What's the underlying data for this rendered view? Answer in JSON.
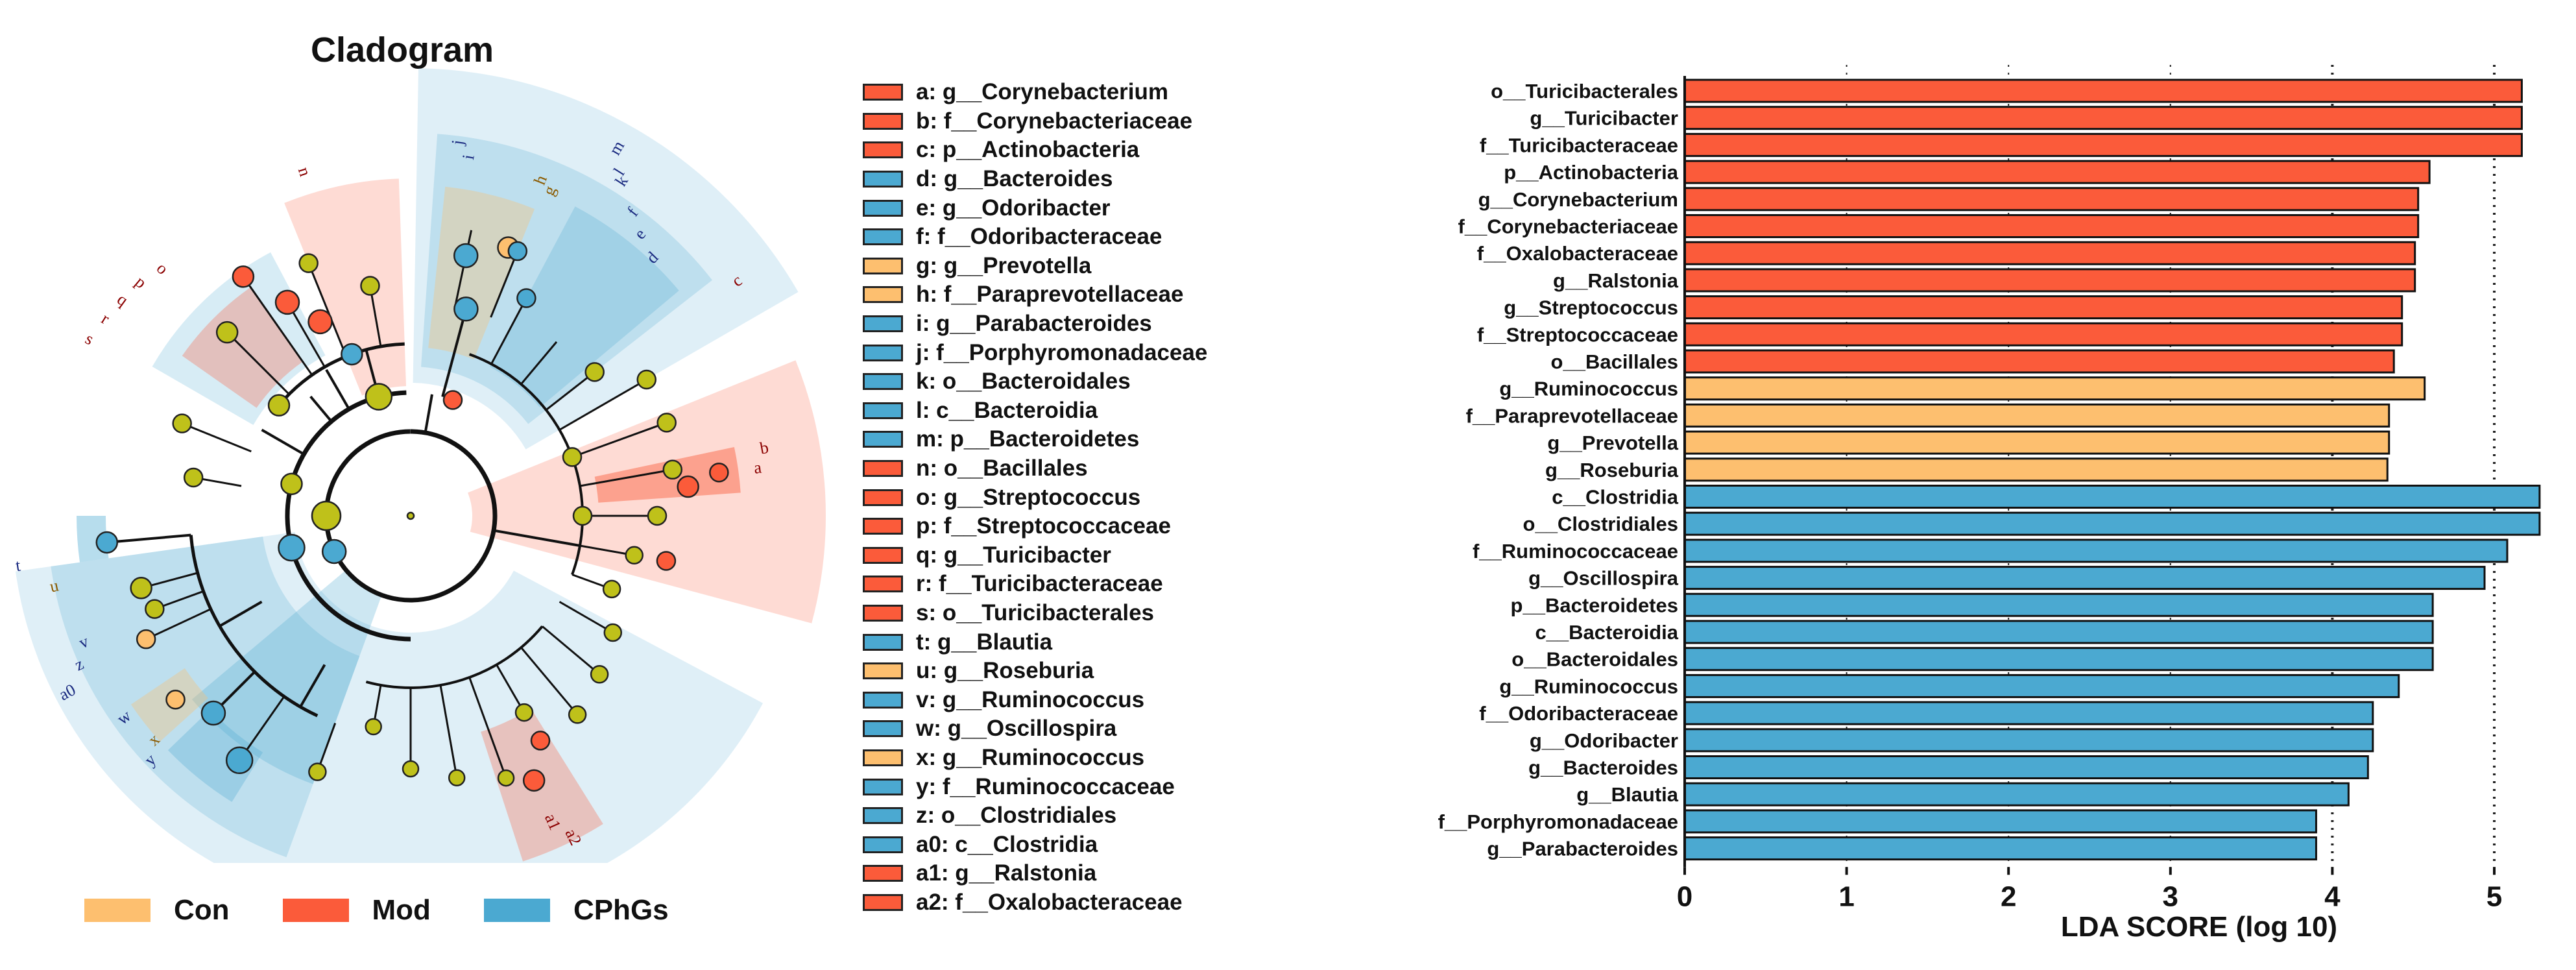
{
  "colors": {
    "Con": "#FDBF6F",
    "Mod": "#FB5B3A",
    "CPhGs": "#4BA9D1",
    "olive": "#BFC11A"
  },
  "cladogram": {
    "title": "Cladogram",
    "labels": [
      "n",
      "j",
      "i",
      "h",
      "g",
      "m",
      "l",
      "k",
      "f",
      "e",
      "d",
      "c",
      "b",
      "a",
      "s",
      "r",
      "q",
      "p",
      "o",
      "t",
      "u",
      "v",
      "w",
      "x",
      "y",
      "z",
      "a0",
      "a1",
      "a2"
    ]
  },
  "legend": {
    "items": [
      {
        "key": "a",
        "text": "a: g__Corynebacterium",
        "group": "Mod"
      },
      {
        "key": "b",
        "text": "b: f__Corynebacteriaceae",
        "group": "Mod"
      },
      {
        "key": "c",
        "text": "c: p__Actinobacteria",
        "group": "Mod"
      },
      {
        "key": "d",
        "text": "d: g__Bacteroides",
        "group": "CPhGs"
      },
      {
        "key": "e",
        "text": "e: g__Odoribacter",
        "group": "CPhGs"
      },
      {
        "key": "f",
        "text": "f: f__Odoribacteraceae",
        "group": "CPhGs"
      },
      {
        "key": "g",
        "text": "g: g__Prevotella",
        "group": "Con"
      },
      {
        "key": "h",
        "text": "h: f__Paraprevotellaceae",
        "group": "Con"
      },
      {
        "key": "i",
        "text": "i: g__Parabacteroides",
        "group": "CPhGs"
      },
      {
        "key": "j",
        "text": "j: f__Porphyromonadaceae",
        "group": "CPhGs"
      },
      {
        "key": "k",
        "text": "k: o__Bacteroidales",
        "group": "CPhGs"
      },
      {
        "key": "l",
        "text": "l: c__Bacteroidia",
        "group": "CPhGs"
      },
      {
        "key": "m",
        "text": "m: p__Bacteroidetes",
        "group": "CPhGs"
      },
      {
        "key": "n",
        "text": "n: o__Bacillales",
        "group": "Mod"
      },
      {
        "key": "o",
        "text": "o: g__Streptococcus",
        "group": "Mod"
      },
      {
        "key": "p",
        "text": "p: f__Streptococcaceae",
        "group": "Mod"
      },
      {
        "key": "q",
        "text": "q: g__Turicibacter",
        "group": "Mod"
      },
      {
        "key": "r",
        "text": "r: f__Turicibacteraceae",
        "group": "Mod"
      },
      {
        "key": "s",
        "text": "s: o__Turicibacterales",
        "group": "Mod"
      },
      {
        "key": "t",
        "text": "t: g__Blautia",
        "group": "CPhGs"
      },
      {
        "key": "u",
        "text": "u: g__Roseburia",
        "group": "Con"
      },
      {
        "key": "v",
        "text": "v: g__Ruminococcus",
        "group": "CPhGs"
      },
      {
        "key": "w",
        "text": "w: g__Oscillospira",
        "group": "CPhGs"
      },
      {
        "key": "x",
        "text": "x: g__Ruminococcus",
        "group": "Con"
      },
      {
        "key": "y",
        "text": "y: f__Ruminococcaceae",
        "group": "CPhGs"
      },
      {
        "key": "z",
        "text": "z: o__Clostridiales",
        "group": "CPhGs"
      },
      {
        "key": "a0",
        "text": "a0: c__Clostridia",
        "group": "CPhGs"
      },
      {
        "key": "a1",
        "text": "a1: g__Ralstonia",
        "group": "Mod"
      },
      {
        "key": "a2",
        "text": "a2: f__Oxalobacteraceae",
        "group": "Mod"
      }
    ]
  },
  "bottom_legend": [
    {
      "label": "Con",
      "group": "Con"
    },
    {
      "label": "Mod",
      "group": "Mod"
    },
    {
      "label": "CPhGs",
      "group": "CPhGs"
    }
  ],
  "chart_data": {
    "type": "bar",
    "orientation": "horizontal",
    "xlabel": "LDA SCORE (log 10)",
    "xlim": [
      0,
      5.3
    ],
    "xticks": [
      0,
      1,
      2,
      3,
      4,
      5
    ],
    "grid": "dotted vertical",
    "bars": [
      {
        "label": "o__Turicibacterales",
        "value": 5.17,
        "group": "Mod"
      },
      {
        "label": "g__Turicibacter",
        "value": 5.17,
        "group": "Mod"
      },
      {
        "label": "f__Turicibacteraceae",
        "value": 5.17,
        "group": "Mod"
      },
      {
        "label": "p__Actinobacteria",
        "value": 4.6,
        "group": "Mod"
      },
      {
        "label": "g__Corynebacterium",
        "value": 4.53,
        "group": "Mod"
      },
      {
        "label": "f__Corynebacteriaceae",
        "value": 4.53,
        "group": "Mod"
      },
      {
        "label": "f__Oxalobacteraceae",
        "value": 4.51,
        "group": "Mod"
      },
      {
        "label": "g__Ralstonia",
        "value": 4.51,
        "group": "Mod"
      },
      {
        "label": "g__Streptococcus",
        "value": 4.43,
        "group": "Mod"
      },
      {
        "label": "f__Streptococcaceae",
        "value": 4.43,
        "group": "Mod"
      },
      {
        "label": "o__Bacillales",
        "value": 4.38,
        "group": "Mod"
      },
      {
        "label": "g__Ruminococcus",
        "value": 4.57,
        "group": "Con"
      },
      {
        "label": "f__Paraprevotellaceae",
        "value": 4.35,
        "group": "Con"
      },
      {
        "label": "g__Prevotella",
        "value": 4.35,
        "group": "Con"
      },
      {
        "label": "g__Roseburia",
        "value": 4.34,
        "group": "Con"
      },
      {
        "label": "c__Clostridia",
        "value": 5.28,
        "group": "CPhGs"
      },
      {
        "label": "o__Clostridiales",
        "value": 5.28,
        "group": "CPhGs"
      },
      {
        "label": "f__Ruminococcaceae",
        "value": 5.08,
        "group": "CPhGs"
      },
      {
        "label": "g__Oscillospira",
        "value": 4.94,
        "group": "CPhGs"
      },
      {
        "label": "p__Bacteroidetes",
        "value": 4.62,
        "group": "CPhGs"
      },
      {
        "label": "c__Bacteroidia",
        "value": 4.62,
        "group": "CPhGs"
      },
      {
        "label": "o__Bacteroidales",
        "value": 4.62,
        "group": "CPhGs"
      },
      {
        "label": "g__Ruminococcus",
        "value": 4.41,
        "group": "CPhGs"
      },
      {
        "label": "f__Odoribacteraceae",
        "value": 4.25,
        "group": "CPhGs"
      },
      {
        "label": "g__Odoribacter",
        "value": 4.25,
        "group": "CPhGs"
      },
      {
        "label": "g__Bacteroides",
        "value": 4.22,
        "group": "CPhGs"
      },
      {
        "label": "g__Blautia",
        "value": 4.1,
        "group": "CPhGs"
      },
      {
        "label": "f__Porphyromonadaceae",
        "value": 3.9,
        "group": "CPhGs"
      },
      {
        "label": "g__Parabacteroides",
        "value": 3.9,
        "group": "CPhGs"
      }
    ]
  }
}
